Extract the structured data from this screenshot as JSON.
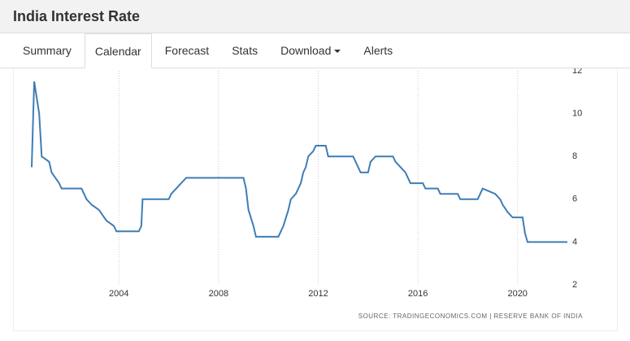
{
  "header": {
    "title": "India Interest Rate"
  },
  "tabs": [
    "Summary",
    "Calendar",
    "Forecast",
    "Stats",
    "Download",
    "Alerts"
  ],
  "active_tab": 1,
  "chart_data": {
    "type": "line",
    "source": "SOURCE: TRADINGECONOMICS.COM | RESERVE BANK OF INDIA",
    "x": [
      2000.5,
      2000.6,
      2000.8,
      2000.9,
      2001.2,
      2001.3,
      2001.6,
      2001.7,
      2002.5,
      2002.7,
      2002.9,
      2003.2,
      2003.5,
      2003.8,
      2003.9,
      2004.8,
      2004.9,
      2004.95,
      2006.0,
      2006.1,
      2006.3,
      2006.5,
      2006.7,
      2009.0,
      2009.1,
      2009.2,
      2009.4,
      2009.5,
      2010.4,
      2010.6,
      2010.8,
      2010.9,
      2011.1,
      2011.3,
      2011.4,
      2011.5,
      2011.6,
      2011.8,
      2011.9,
      2012.3,
      2012.4,
      2013.4,
      2013.6,
      2013.7,
      2014.0,
      2014.1,
      2014.3,
      2015.0,
      2015.1,
      2015.3,
      2015.5,
      2015.7,
      2016.2,
      2016.3,
      2016.8,
      2016.9,
      2017.6,
      2017.7,
      2018.4,
      2018.5,
      2018.6,
      2019.1,
      2019.3,
      2019.4,
      2019.6,
      2019.8,
      2020.2,
      2020.3,
      2020.4,
      2022.0
    ],
    "series": [
      {
        "name": "Interest Rate",
        "color": "#3f7db5",
        "values": [
          7.5,
          11.5,
          10,
          8,
          7.75,
          7.25,
          6.75,
          6.5,
          6.5,
          6,
          5.75,
          5.5,
          5,
          4.75,
          4.5,
          4.5,
          4.75,
          6,
          6,
          6.25,
          6.5,
          6.75,
          7,
          7,
          6.5,
          5.5,
          4.75,
          4.25,
          4.25,
          4.75,
          5.5,
          6,
          6.25,
          6.75,
          7.25,
          7.5,
          8,
          8.25,
          8.5,
          8.5,
          8,
          8,
          7.5,
          7.25,
          7.25,
          7.75,
          8,
          8,
          7.75,
          7.5,
          7.25,
          6.75,
          6.75,
          6.5,
          6.5,
          6.25,
          6.25,
          6,
          6,
          6.25,
          6.5,
          6.25,
          6,
          5.75,
          5.4,
          5.15,
          5.15,
          4.4,
          4,
          4
        ]
      }
    ],
    "xlim": [
      2000.5,
      2022.0
    ],
    "ylim": [
      2,
      12
    ],
    "xticks": [
      2004,
      2008,
      2012,
      2016,
      2020
    ],
    "yticks": [
      2,
      4,
      6,
      8,
      10,
      12
    ],
    "grid": true
  }
}
